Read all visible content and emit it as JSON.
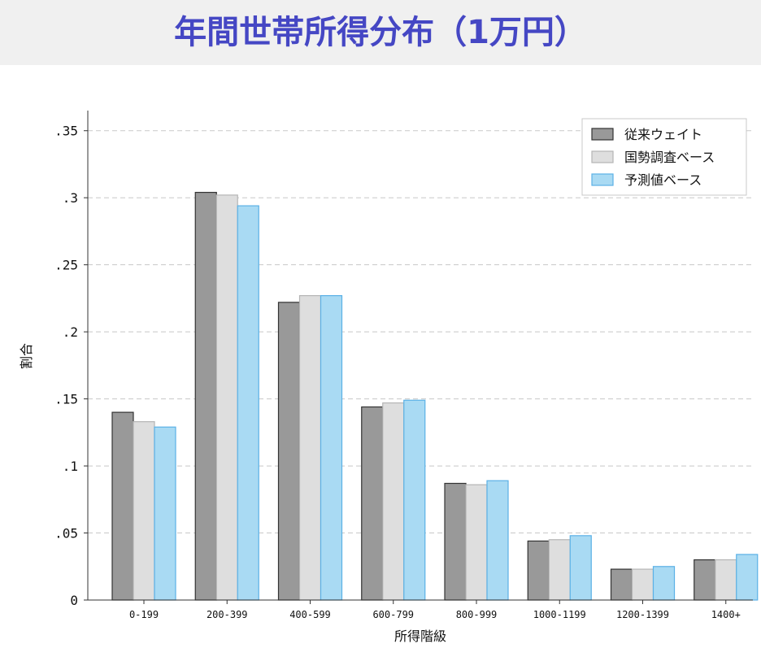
{
  "chart_data": {
    "type": "bar",
    "title": "年間世帯所得分布（1万円）",
    "xlabel": "所得階級",
    "ylabel": "割合",
    "categories": [
      "0-199",
      "200-399",
      "400-599",
      "600-799",
      "800-999",
      "1000-1199",
      "1200-1399",
      "1400+"
    ],
    "series": [
      {
        "name": "従来ウェイト",
        "color": "#999999",
        "stroke": "#333333",
        "values": [
          0.14,
          0.304,
          0.222,
          0.144,
          0.087,
          0.044,
          0.023,
          0.03
        ]
      },
      {
        "name": "国勢調査ベース",
        "color": "#dedede",
        "stroke": "#b5b5b5",
        "values": [
          0.133,
          0.302,
          0.227,
          0.147,
          0.086,
          0.045,
          0.023,
          0.03
        ]
      },
      {
        "name": "予測値ベース",
        "color": "#a9daf3",
        "stroke": "#5bb1e6",
        "values": [
          0.129,
          0.294,
          0.227,
          0.149,
          0.089,
          0.048,
          0.025,
          0.034
        ]
      }
    ],
    "ylim": [
      0,
      0.365
    ],
    "yticks": [
      0,
      0.05,
      0.1,
      0.15,
      0.2,
      0.25,
      0.3,
      0.35
    ],
    "ytick_labels": [
      "0",
      ".05",
      ".1",
      ".15",
      ".2",
      ".25",
      ".3",
      ".35"
    ],
    "grid": true,
    "legend_position": "top-right"
  },
  "colors": {
    "title": "#4547c4",
    "title_band": "#f0f0f0",
    "grid": "#c8c8c8"
  }
}
